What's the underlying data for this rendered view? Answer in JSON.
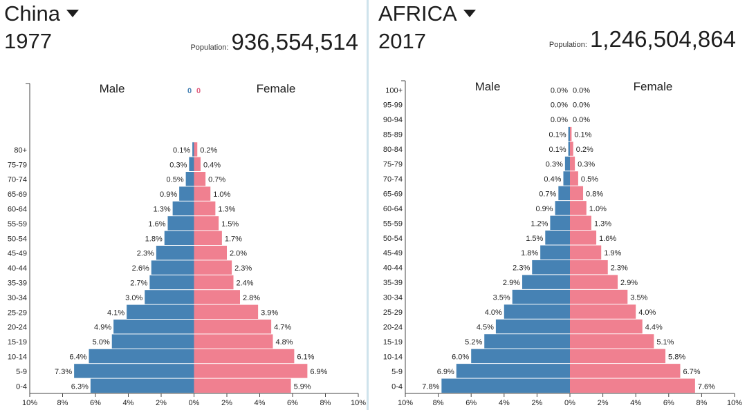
{
  "panels": [
    {
      "country": "China",
      "year": "1977",
      "population_label": "Population:",
      "population": "936,554,514",
      "male_label": "Male",
      "female_label": "Female",
      "counter_male": "0",
      "counter_female": "0"
    },
    {
      "country": "AFRICA",
      "year": "2017",
      "population_label": "Population:",
      "population": "1,246,504,864",
      "male_label": "Male",
      "female_label": "Female"
    }
  ],
  "colors": {
    "male": "#4682b4",
    "female": "#f08090",
    "counter_male": "#4682b4",
    "counter_female": "#e06080"
  },
  "chart_data": [
    {
      "type": "bar",
      "orientation": "horizontal-population-pyramid",
      "x_ticks": [
        "10%",
        "8%",
        "6%",
        "4%",
        "2%",
        "0%",
        "2%",
        "4%",
        "6%",
        "8%",
        "10%"
      ],
      "xlim": [
        -10,
        10
      ],
      "categories": [
        "0-4",
        "5-9",
        "10-14",
        "15-19",
        "20-24",
        "25-29",
        "30-34",
        "35-39",
        "40-44",
        "45-49",
        "50-54",
        "55-59",
        "60-64",
        "65-69",
        "70-74",
        "75-79",
        "80+"
      ],
      "series": [
        {
          "name": "Male",
          "values": [
            6.3,
            7.3,
            6.4,
            5.0,
            4.9,
            4.1,
            3.0,
            2.7,
            2.6,
            2.3,
            1.8,
            1.6,
            1.3,
            0.9,
            0.5,
            0.3,
            0.1
          ],
          "labels": [
            "6.3%",
            "7.3%",
            "6.4%",
            "5.0%",
            "4.9%",
            "4.1%",
            "3.0%",
            "2.7%",
            "2.6%",
            "2.3%",
            "1.8%",
            "1.6%",
            "1.3%",
            "0.9%",
            "0.5%",
            "0.3%",
            "0.1%"
          ]
        },
        {
          "name": "Female",
          "values": [
            5.9,
            6.9,
            6.1,
            4.8,
            4.7,
            3.9,
            2.8,
            2.4,
            2.3,
            2.0,
            1.7,
            1.5,
            1.3,
            1.0,
            0.7,
            0.4,
            0.2
          ],
          "labels": [
            "5.9%",
            "6.9%",
            "6.1%",
            "4.8%",
            "4.7%",
            "3.9%",
            "2.8%",
            "2.4%",
            "2.3%",
            "2.0%",
            "1.7%",
            "1.5%",
            "1.3%",
            "1.0%",
            "0.7%",
            "0.4%",
            "0.2%"
          ]
        }
      ]
    },
    {
      "type": "bar",
      "orientation": "horizontal-population-pyramid",
      "x_ticks": [
        "10%",
        "8%",
        "6%",
        "4%",
        "2%",
        "0%",
        "2%",
        "4%",
        "6%",
        "8%",
        "10%"
      ],
      "xlim": [
        -10,
        10
      ],
      "categories": [
        "0-4",
        "5-9",
        "10-14",
        "15-19",
        "20-24",
        "25-29",
        "30-34",
        "35-39",
        "40-44",
        "45-49",
        "50-54",
        "55-59",
        "60-64",
        "65-69",
        "70-74",
        "75-79",
        "80-84",
        "85-89",
        "90-94",
        "95-99",
        "100+"
      ],
      "series": [
        {
          "name": "Male",
          "values": [
            7.8,
            6.9,
            6.0,
            5.2,
            4.5,
            4.0,
            3.5,
            2.9,
            2.3,
            1.8,
            1.5,
            1.2,
            0.9,
            0.7,
            0.4,
            0.3,
            0.1,
            0.1,
            0.0,
            0.0,
            0.0
          ],
          "labels": [
            "7.8%",
            "6.9%",
            "6.0%",
            "5.2%",
            "4.5%",
            "4.0%",
            "3.5%",
            "2.9%",
            "2.3%",
            "1.8%",
            "1.5%",
            "1.2%",
            "0.9%",
            "0.7%",
            "0.4%",
            "0.3%",
            "0.1%",
            "0.1%",
            "0.0%",
            "0.0%",
            "0.0%"
          ]
        },
        {
          "name": "Female",
          "values": [
            7.6,
            6.7,
            5.8,
            5.1,
            4.4,
            4.0,
            3.5,
            2.9,
            2.3,
            1.9,
            1.6,
            1.3,
            1.0,
            0.8,
            0.5,
            0.3,
            0.2,
            0.1,
            0.0,
            0.0,
            0.0
          ],
          "labels": [
            "7.6%",
            "6.7%",
            "5.8%",
            "5.1%",
            "4.4%",
            "4.0%",
            "3.5%",
            "2.9%",
            "2.3%",
            "1.9%",
            "1.6%",
            "1.3%",
            "1.0%",
            "0.8%",
            "0.5%",
            "0.3%",
            "0.2%",
            "0.1%",
            "0.0%",
            "0.0%",
            "0.0%"
          ]
        }
      ]
    }
  ]
}
